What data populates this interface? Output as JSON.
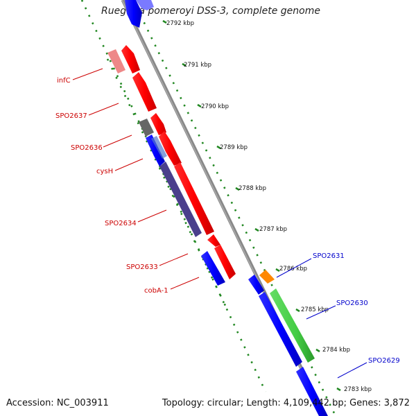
{
  "title": "Ruegeria pomeroyi DSS-3, complete genome",
  "footer": {
    "accession": "Accession: NC_003911",
    "summary": "Topology: circular; Length: 4,109,442 bp; Genes: 3,872"
  },
  "ticks": [
    "2792 kbp",
    "2791 kbp",
    "2790 kbp",
    "2789 kbp",
    "2788 kbp",
    "2787 kbp",
    "2786 kbp",
    "2785 kbp",
    "2784 kbp",
    "2783 kbp"
  ],
  "genes_left": [
    "infC",
    "SPO2637",
    "SPO2636",
    "cysH",
    "SPO2634",
    "SPO2633",
    "cobA-1"
  ],
  "genes_right": [
    "SPO2631",
    "SPO2630",
    "SPO2629"
  ],
  "colors": {
    "backbone": "#888888",
    "minus_strand_cds": "#ff0000",
    "plus_strand_cds": "#0000ff",
    "left_label": "#cc0000",
    "right_label": "#0000cc",
    "dotted_ring": "#228822",
    "green_feature": "#44cc44",
    "orange_feature": "#ff8800",
    "purple_feature": "#4a3f8c",
    "gray_feature": "#666666",
    "pink_feature": "#ee8888"
  }
}
